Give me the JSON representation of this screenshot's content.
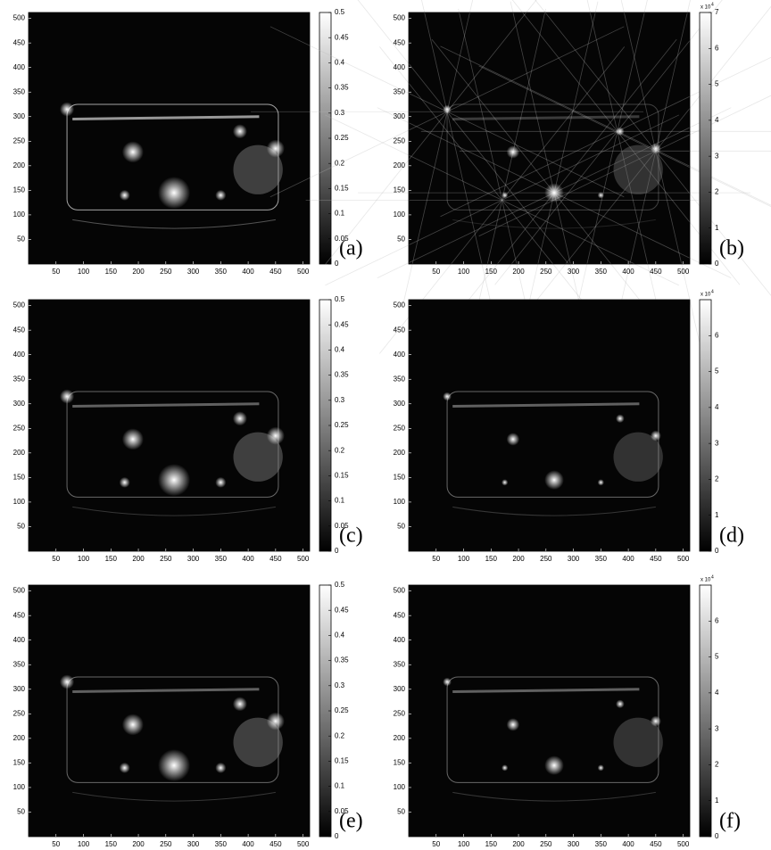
{
  "figure": {
    "panels": [
      {
        "label": "(a)",
        "image": {
          "xlim": [
            0,
            512
          ],
          "ylim": [
            0,
            512
          ],
          "xticks": [
            50,
            100,
            150,
            200,
            250,
            300,
            350,
            400,
            450,
            500
          ],
          "yticks": [
            50,
            100,
            150,
            200,
            250,
            300,
            350,
            400,
            450,
            500
          ]
        },
        "colorbar": {
          "lim": [
            0,
            0.5
          ],
          "ticks": [
            0,
            0.05,
            0.1,
            0.15,
            0.2,
            0.25,
            0.3,
            0.35,
            0.4,
            0.45,
            0.5
          ]
        }
      },
      {
        "label": "(b)",
        "image": {
          "xlim": [
            0,
            512
          ],
          "ylim": [
            0,
            512
          ],
          "xticks": [
            50,
            100,
            150,
            200,
            250,
            300,
            350,
            400,
            450,
            500
          ],
          "yticks": [
            50,
            100,
            150,
            200,
            250,
            300,
            350,
            400,
            450,
            500
          ]
        },
        "colorbar": {
          "lim": [
            0,
            7
          ],
          "ticks": [
            0,
            1,
            2,
            3,
            4,
            5,
            6,
            7
          ],
          "exponent_label": "x 10",
          "exponent_power": "4"
        }
      },
      {
        "label": "(c)",
        "image": {
          "xlim": [
            0,
            512
          ],
          "ylim": [
            0,
            512
          ],
          "xticks": [
            50,
            100,
            150,
            200,
            250,
            300,
            350,
            400,
            450,
            500
          ],
          "yticks": [
            50,
            100,
            150,
            200,
            250,
            300,
            350,
            400,
            450,
            500
          ]
        },
        "colorbar": {
          "lim": [
            0,
            0.5
          ],
          "ticks": [
            0,
            0.05,
            0.1,
            0.15,
            0.2,
            0.25,
            0.3,
            0.35,
            0.4,
            0.45,
            0.5
          ]
        }
      },
      {
        "label": "(d)",
        "image": {
          "xlim": [
            0,
            512
          ],
          "ylim": [
            0,
            512
          ],
          "xticks": [
            50,
            100,
            150,
            200,
            250,
            300,
            350,
            400,
            450,
            500
          ],
          "yticks": [
            50,
            100,
            150,
            200,
            250,
            300,
            350,
            400,
            450,
            500
          ]
        },
        "colorbar": {
          "lim": [
            0,
            7
          ],
          "ticks": [
            0,
            1,
            2,
            3,
            4,
            5,
            6
          ],
          "exponent_label": "x 10",
          "exponent_power": "4"
        }
      },
      {
        "label": "(e)",
        "image": {
          "xlim": [
            0,
            512
          ],
          "ylim": [
            0,
            512
          ],
          "xticks": [
            50,
            100,
            150,
            200,
            250,
            300,
            350,
            400,
            450,
            500
          ],
          "yticks": [
            50,
            100,
            150,
            200,
            250,
            300,
            350,
            400,
            450,
            500
          ]
        },
        "colorbar": {
          "lim": [
            0,
            0.5
          ],
          "ticks": [
            0,
            0.05,
            0.1,
            0.15,
            0.2,
            0.25,
            0.3,
            0.35,
            0.4,
            0.45,
            0.5
          ]
        }
      },
      {
        "label": "(f)",
        "image": {
          "xlim": [
            0,
            512
          ],
          "ylim": [
            0,
            512
          ],
          "xticks": [
            50,
            100,
            150,
            200,
            250,
            300,
            350,
            400,
            450,
            500
          ],
          "yticks": [
            50,
            100,
            150,
            200,
            250,
            300,
            350,
            400,
            450,
            500
          ]
        },
        "colorbar": {
          "lim": [
            0,
            7
          ],
          "ticks": [
            0,
            1,
            2,
            3,
            4,
            5,
            6
          ],
          "exponent_label": "x 10",
          "exponent_power": "4"
        }
      }
    ]
  }
}
